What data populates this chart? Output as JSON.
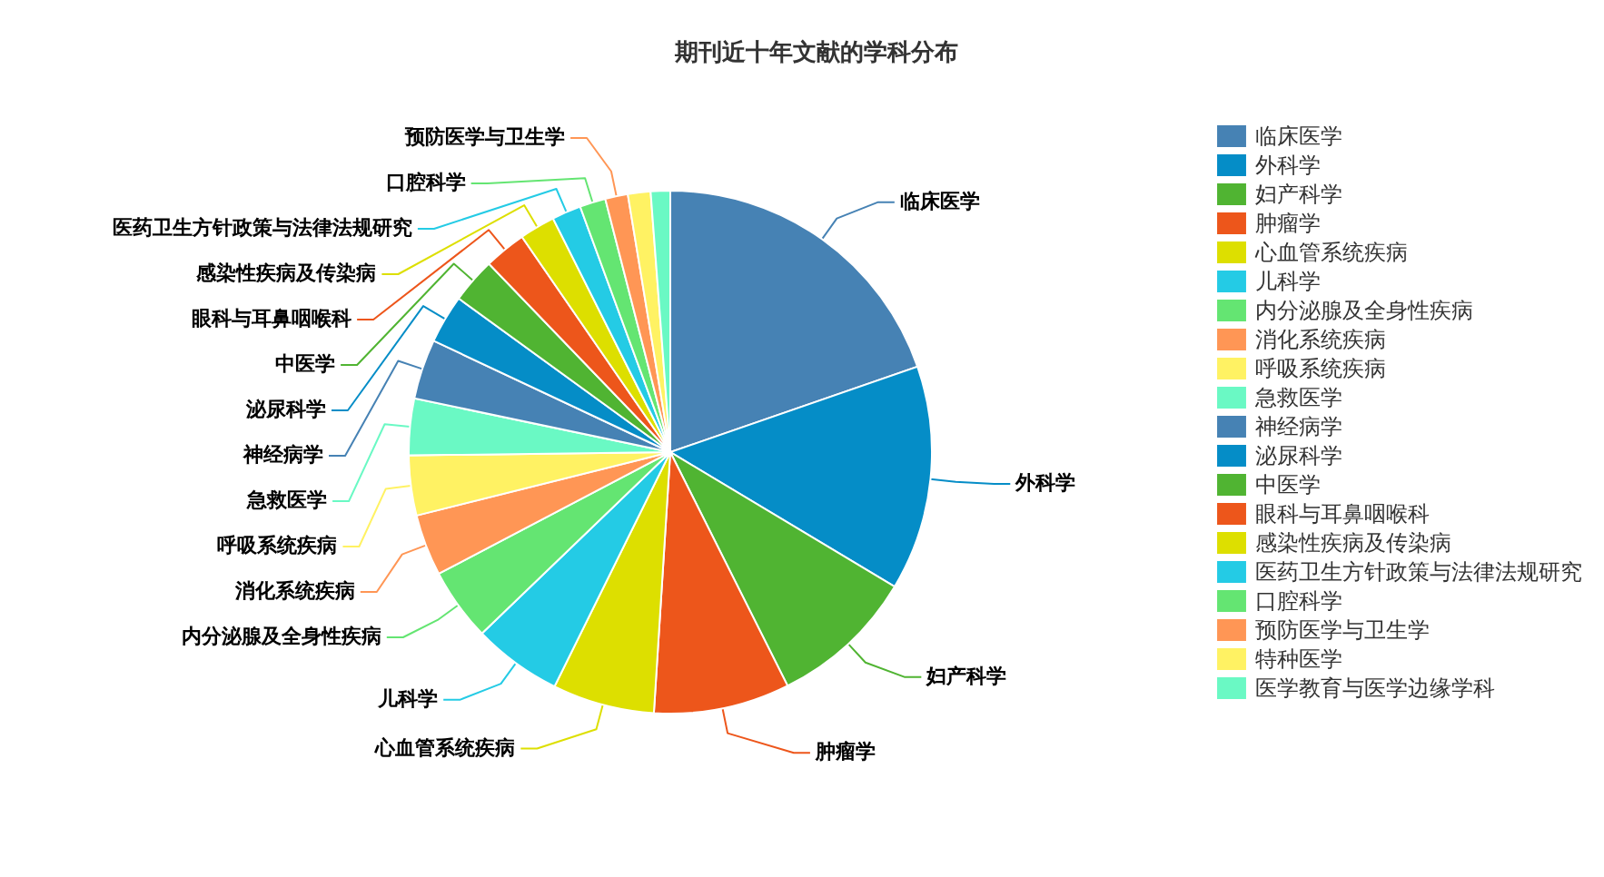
{
  "chart_data": {
    "type": "pie",
    "title": "期刊近十年文献的学科分布",
    "categories": [
      "临床医学",
      "外科学",
      "妇产科学",
      "肿瘤学",
      "心血管系统疾病",
      "儿科学",
      "内分泌腺及全身性疾病",
      "消化系统疾病",
      "呼吸系统疾病",
      "急救医学",
      "神经病学",
      "泌尿科学",
      "中医学",
      "眼科与耳鼻咽喉科",
      "感染性疾病及传染病",
      "医药卫生方针政策与法律法规研究",
      "口腔科学",
      "预防医学与卫生学",
      "特种医学",
      "医学教育与医学边缘学科"
    ],
    "values": [
      19.7,
      13.9,
      9.0,
      8.4,
      6.3,
      5.5,
      4.5,
      3.8,
      3.7,
      3.5,
      3.7,
      3.0,
      2.8,
      2.6,
      2.2,
      1.8,
      1.6,
      1.4,
      1.4,
      1.2
    ],
    "colors": [
      "#4682b4",
      "#058dc7",
      "#50b432",
      "#ed561b",
      "#dddf00",
      "#24cbe5",
      "#64e572",
      "#ff9655",
      "#fff263",
      "#6af9c4",
      "#4682b4",
      "#058dc7",
      "#50b432",
      "#ed561b",
      "#dddf00",
      "#24cbe5",
      "#64e572",
      "#ff9655",
      "#fff263",
      "#6af9c4"
    ],
    "legend": "right"
  }
}
